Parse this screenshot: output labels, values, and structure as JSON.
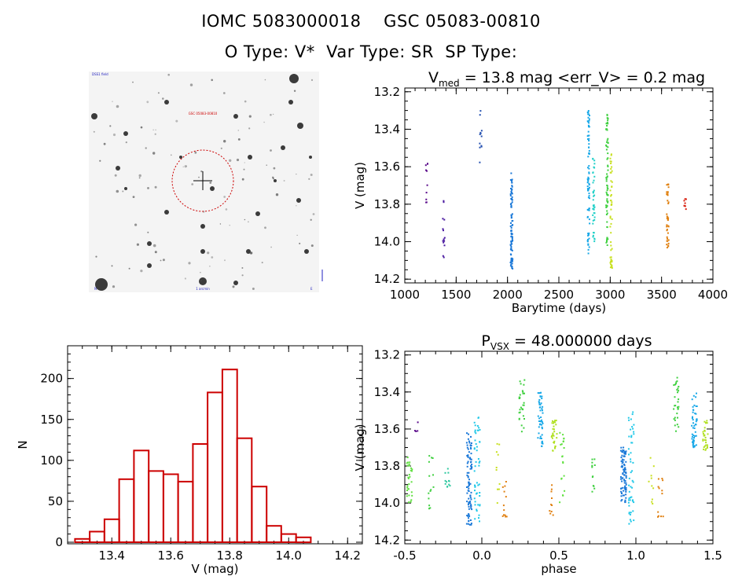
{
  "header": {
    "title_line1": "IOMC 5083000018    GSC 05083-00810",
    "title_line2": "O Type: V*  Var Type: SR  SP Type:"
  },
  "colors": {
    "histogram_bar": "#cc0000",
    "reticle": "#cc0000"
  },
  "thumbnail": {
    "label_top_left": "DSS1 field",
    "label_center_top": "GSC 05083-00810",
    "label_bottom_center": "1 arcmin",
    "label_bottom_left": "N",
    "label_bottom_right": "E"
  },
  "chart_data": [
    {
      "id": "lightcurve",
      "type": "scatter",
      "title_main": "V",
      "title_sub": "med",
      "title_rest": " = 13.8 mag <err_V> = 0.2 mag",
      "xlabel": "Barytime (days)",
      "ylabel": "V (mag)",
      "xlim": [
        1000,
        4000
      ],
      "ylim": [
        14.22,
        13.18
      ],
      "xticks": [
        1000,
        1500,
        2000,
        2500,
        3000,
        3500,
        4000
      ],
      "yticks": [
        13.2,
        13.4,
        13.6,
        13.8,
        14.0,
        14.2
      ],
      "xtick_labels": [
        "1000",
        "1500",
        "2000",
        "2500",
        "3000",
        "3500",
        "4000"
      ],
      "ytick_labels": [
        "13.2",
        "13.4",
        "13.6",
        "13.8",
        "14.0",
        "14.2"
      ],
      "groups": [
        {
          "x": 1215,
          "ymin": 13.55,
          "ymax": 13.8,
          "n": 10,
          "color": "#5a0a8a"
        },
        {
          "x": 1380,
          "ymin": 13.7,
          "ymax": 14.1,
          "n": 14,
          "color": "#4a1aa0"
        },
        {
          "x": 1740,
          "ymin": 13.3,
          "ymax": 13.63,
          "n": 12,
          "color": "#2450b0"
        },
        {
          "x": 2040,
          "ymin": 13.63,
          "ymax": 14.15,
          "n": 90,
          "color": "#1a78d8"
        },
        {
          "x": 2790,
          "ymin": 13.3,
          "ymax": 14.08,
          "n": 80,
          "color": "#18a8e8"
        },
        {
          "x": 2840,
          "ymin": 13.55,
          "ymax": 14.0,
          "n": 40,
          "color": "#20d0c8"
        },
        {
          "x": 2970,
          "ymin": 13.32,
          "ymax": 14.05,
          "n": 70,
          "color": "#40d040"
        },
        {
          "x": 3010,
          "ymin": 13.52,
          "ymax": 14.16,
          "n": 50,
          "color": "#c8e020"
        },
        {
          "x": 3560,
          "ymin": 13.68,
          "ymax": 14.06,
          "n": 40,
          "color": "#e08010"
        },
        {
          "x": 3730,
          "ymin": 13.77,
          "ymax": 13.83,
          "n": 8,
          "color": "#d82010"
        }
      ]
    },
    {
      "id": "phased",
      "type": "scatter",
      "title_main": "P",
      "title_sub": "VSX",
      "title_rest": " = 48.000000 days",
      "xlabel": "phase",
      "ylabel": "V (mag)",
      "xlim": [
        -0.5,
        1.5
      ],
      "ylim": [
        14.22,
        13.18
      ],
      "xticks": [
        -0.5,
        0.0,
        0.5,
        1.0,
        1.5
      ],
      "yticks": [
        13.2,
        13.4,
        13.6,
        13.8,
        14.0,
        14.2
      ],
      "xtick_labels": [
        "-0.5",
        "0.0",
        "0.5",
        "1.0",
        "1.5"
      ],
      "ytick_labels": [
        "13.2",
        "13.4",
        "13.6",
        "13.8",
        "14.0",
        "14.2"
      ],
      "groups": [
        {
          "x": -0.47,
          "ymin": 13.75,
          "ymax": 14.0,
          "n": 30,
          "color": "#60e040"
        },
        {
          "x": -0.42,
          "ymin": 13.55,
          "ymax": 13.7,
          "n": 4,
          "color": "#5a0a8a"
        },
        {
          "x": -0.33,
          "ymin": 13.72,
          "ymax": 14.03,
          "n": 14,
          "color": "#40d040"
        },
        {
          "x": -0.22,
          "ymin": 13.74,
          "ymax": 13.94,
          "n": 12,
          "color": "#30c8a0"
        },
        {
          "x": -0.08,
          "ymin": 13.62,
          "ymax": 14.12,
          "n": 90,
          "color": "#1a78d8"
        },
        {
          "x": -0.03,
          "ymin": 13.5,
          "ymax": 14.12,
          "n": 50,
          "color": "#20c8e8"
        },
        {
          "x": 0.1,
          "ymin": 13.67,
          "ymax": 14.02,
          "n": 10,
          "color": "#c8e020"
        },
        {
          "x": 0.15,
          "ymin": 13.85,
          "ymax": 14.08,
          "n": 12,
          "color": "#e08010"
        },
        {
          "x": 0.26,
          "ymin": 13.32,
          "ymax": 13.63,
          "n": 30,
          "color": "#40d040"
        },
        {
          "x": 0.38,
          "ymin": 13.4,
          "ymax": 13.7,
          "n": 50,
          "color": "#18a8e8"
        },
        {
          "x": 0.47,
          "ymin": 13.55,
          "ymax": 13.72,
          "n": 30,
          "color": "#b0e020"
        },
        {
          "x": 0.52,
          "ymin": 13.62,
          "ymax": 14.0,
          "n": 20,
          "color": "#60e040"
        },
        {
          "x": 0.45,
          "ymin": 13.9,
          "ymax": 14.1,
          "n": 10,
          "color": "#e08010"
        },
        {
          "x": 0.73,
          "ymin": 13.74,
          "ymax": 13.96,
          "n": 12,
          "color": "#40d040"
        },
        {
          "x": 0.92,
          "ymin": 13.7,
          "ymax": 14.0,
          "n": 90,
          "color": "#1a78d8"
        },
        {
          "x": 0.97,
          "ymin": 13.5,
          "ymax": 14.12,
          "n": 50,
          "color": "#20c8e8"
        },
        {
          "x": 1.1,
          "ymin": 13.67,
          "ymax": 14.02,
          "n": 10,
          "color": "#c8e020"
        },
        {
          "x": 1.16,
          "ymin": 13.85,
          "ymax": 14.08,
          "n": 12,
          "color": "#e08010"
        },
        {
          "x": 1.26,
          "ymin": 13.32,
          "ymax": 13.63,
          "n": 30,
          "color": "#40d040"
        },
        {
          "x": 1.38,
          "ymin": 13.4,
          "ymax": 13.7,
          "n": 50,
          "color": "#18a8e8"
        },
        {
          "x": 1.45,
          "ymin": 13.55,
          "ymax": 13.72,
          "n": 30,
          "color": "#b0e020"
        }
      ]
    },
    {
      "id": "histogram",
      "type": "bar",
      "xlabel": "V (mag)",
      "ylabel": "N",
      "xlim": [
        13.25,
        14.25
      ],
      "ylim": [
        0,
        240
      ],
      "xticks": [
        13.4,
        13.6,
        13.8,
        14.0,
        14.2
      ],
      "yticks": [
        0,
        50,
        100,
        150,
        200
      ],
      "xtick_labels": [
        "13.4",
        "13.6",
        "13.8",
        "14.0",
        "14.2"
      ],
      "ytick_labels": [
        "0",
        "50",
        "100",
        "150",
        "200"
      ],
      "bin_start": 13.275,
      "bin_width": 0.05,
      "values": [
        4,
        13,
        28,
        77,
        112,
        87,
        83,
        74,
        120,
        183,
        211,
        127,
        68,
        20,
        10,
        6
      ]
    }
  ]
}
